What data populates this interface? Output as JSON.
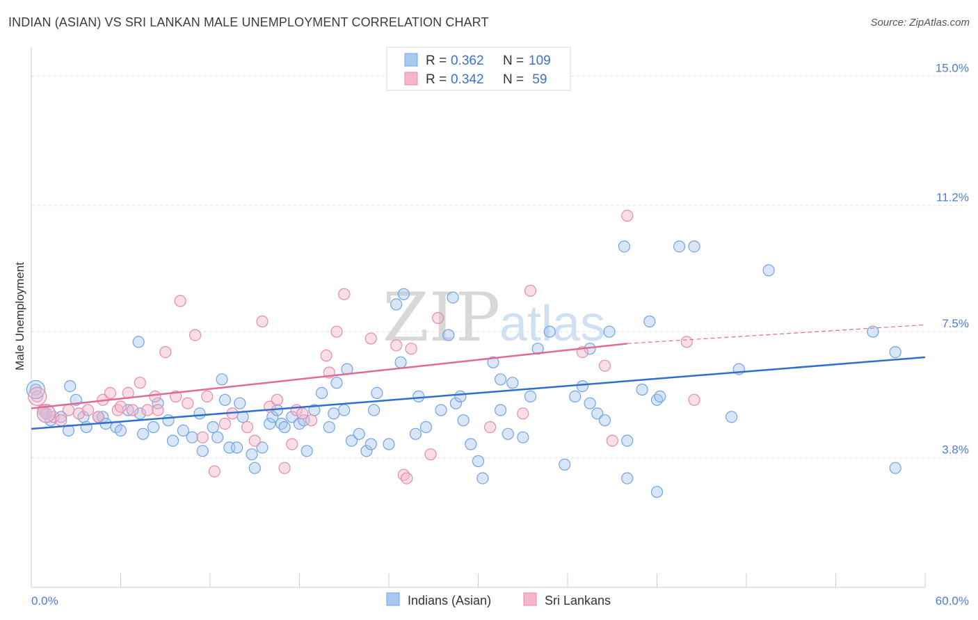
{
  "title": "INDIAN (ASIAN) VS SRI LANKAN MALE UNEMPLOYMENT CORRELATION CHART",
  "source": "Source: ZipAtlas.com",
  "watermark": {
    "zip": "ZIP",
    "atlas": "atlas"
  },
  "legend": {
    "rows": [
      {
        "r_label": "R = ",
        "r_value": "0.362",
        "n_label": "N = ",
        "n_value": "109",
        "color": "#a9c8f0"
      },
      {
        "r_label": "R = ",
        "r_value": "0.342",
        "n_label": "N = ",
        "n_value": " 59",
        "color": "#f4b6c8"
      }
    ]
  },
  "bottom_legend": [
    "Indians (Asian)",
    "Sri Lankans"
  ],
  "chart_data": {
    "type": "scatter",
    "title": "INDIAN (ASIAN) VS SRI LANKAN MALE UNEMPLOYMENT CORRELATION CHART",
    "xlabel": "",
    "ylabel": "Male Unemployment",
    "xlim": [
      0,
      60
    ],
    "ylim": [
      0.0,
      15.7
    ],
    "x_ticks_labels": [
      "0.0%",
      "60.0%"
    ],
    "y_ticks": [
      3.8,
      7.5,
      11.2,
      15.0
    ],
    "y_ticks_labels": [
      "3.8%",
      "7.5%",
      "11.2%",
      "15.0%"
    ],
    "grid": "horizontal dashed",
    "series": [
      {
        "name": "Indians (Asian)",
        "color": "#6fa3e6",
        "fill": "#a9c8f0",
        "trend": {
          "x0": 0,
          "y0": 4.65,
          "x1": 60,
          "y1": 6.75,
          "color": "#2f6fd0"
        },
        "points": [
          [
            0.3,
            5.8
          ],
          [
            0.8,
            5.2
          ],
          [
            1.0,
            5.1
          ],
          [
            1.3,
            4.9
          ],
          [
            2.0,
            5.0
          ],
          [
            2.5,
            4.6
          ],
          [
            2.6,
            5.9
          ],
          [
            3.0,
            5.5
          ],
          [
            3.5,
            5.0
          ],
          [
            3.7,
            4.7
          ],
          [
            4.5,
            5.0
          ],
          [
            4.8,
            5.0
          ],
          [
            5.0,
            4.8
          ],
          [
            5.7,
            4.7
          ],
          [
            6.0,
            4.6
          ],
          [
            6.5,
            5.2
          ],
          [
            7.5,
            4.5
          ],
          [
            7.3,
            5.1
          ],
          [
            8.2,
            4.7
          ],
          [
            8.5,
            5.4
          ],
          [
            7.2,
            7.2
          ],
          [
            9.2,
            4.9
          ],
          [
            9.5,
            4.3
          ],
          [
            10.2,
            4.6
          ],
          [
            10.8,
            4.4
          ],
          [
            11.3,
            5.1
          ],
          [
            11.5,
            4.0
          ],
          [
            12.2,
            4.7
          ],
          [
            12.5,
            4.4
          ],
          [
            12.8,
            6.1
          ],
          [
            13.0,
            5.5
          ],
          [
            13.3,
            4.1
          ],
          [
            13.8,
            4.1
          ],
          [
            14.0,
            5.4
          ],
          [
            14.2,
            5.0
          ],
          [
            14.8,
            3.9
          ],
          [
            15.0,
            3.5
          ],
          [
            15.5,
            4.1
          ],
          [
            16.0,
            4.8
          ],
          [
            16.2,
            5.0
          ],
          [
            16.5,
            5.2
          ],
          [
            16.8,
            4.8
          ],
          [
            17.0,
            4.7
          ],
          [
            17.5,
            5.0
          ],
          [
            18.0,
            4.8
          ],
          [
            18.3,
            4.9
          ],
          [
            18.5,
            4.0
          ],
          [
            19.0,
            5.2
          ],
          [
            19.5,
            5.7
          ],
          [
            20.0,
            4.7
          ],
          [
            20.3,
            5.1
          ],
          [
            20.5,
            6.0
          ],
          [
            21.0,
            5.2
          ],
          [
            21.2,
            6.4
          ],
          [
            21.5,
            4.3
          ],
          [
            22.0,
            4.5
          ],
          [
            22.5,
            4.0
          ],
          [
            22.8,
            4.2
          ],
          [
            23.0,
            5.2
          ],
          [
            23.2,
            5.7
          ],
          [
            24.0,
            4.2
          ],
          [
            24.5,
            8.3
          ],
          [
            24.8,
            6.6
          ],
          [
            25.0,
            8.6
          ],
          [
            25.8,
            4.5
          ],
          [
            26.0,
            5.6
          ],
          [
            26.5,
            4.7
          ],
          [
            27.5,
            5.2
          ],
          [
            28.0,
            7.4
          ],
          [
            28.3,
            8.5
          ],
          [
            28.5,
            5.4
          ],
          [
            28.8,
            5.6
          ],
          [
            29.0,
            4.9
          ],
          [
            29.5,
            4.2
          ],
          [
            30.0,
            3.7
          ],
          [
            30.3,
            3.2
          ],
          [
            31.0,
            6.6
          ],
          [
            31.5,
            5.2
          ],
          [
            32.0,
            4.5
          ],
          [
            31.5,
            6.1
          ],
          [
            32.3,
            6.0
          ],
          [
            33.5,
            5.6
          ],
          [
            34.0,
            7.0
          ],
          [
            34.8,
            7.5
          ],
          [
            35.8,
            3.6
          ],
          [
            36.5,
            5.6
          ],
          [
            37.0,
            5.9
          ],
          [
            37.5,
            7.0
          ],
          [
            37.5,
            5.4
          ],
          [
            38.0,
            5.1
          ],
          [
            38.5,
            4.9
          ],
          [
            38.8,
            7.5
          ],
          [
            40.0,
            4.3
          ],
          [
            39.8,
            10.0
          ],
          [
            40.0,
            3.2
          ],
          [
            41.0,
            5.8
          ],
          [
            41.5,
            7.8
          ],
          [
            42.0,
            5.5
          ],
          [
            42.2,
            5.6
          ],
          [
            43.5,
            10.0
          ],
          [
            44.5,
            10.0
          ],
          [
            47.0,
            5.0
          ],
          [
            47.5,
            6.4
          ],
          [
            49.5,
            9.3
          ],
          [
            56.5,
            7.5
          ],
          [
            58.0,
            3.5
          ],
          [
            58.0,
            6.9
          ],
          [
            33.0,
            4.4
          ],
          [
            42.0,
            2.8
          ]
        ]
      },
      {
        "name": "Sri Lankans",
        "color": "#e88aa8",
        "fill": "#f4b6c8",
        "trend": {
          "x0": 0,
          "y0": 5.25,
          "x1": 40,
          "y1": 7.15,
          "x2": 60,
          "y2": 7.7,
          "color": "#e06a92"
        },
        "points": [
          [
            0.4,
            5.6
          ],
          [
            0.8,
            5.2
          ],
          [
            1.0,
            5.1
          ],
          [
            1.5,
            5.0
          ],
          [
            2.0,
            4.9
          ],
          [
            2.5,
            5.2
          ],
          [
            3.2,
            5.1
          ],
          [
            3.8,
            5.2
          ],
          [
            4.5,
            5.0
          ],
          [
            4.8,
            5.5
          ],
          [
            5.3,
            5.7
          ],
          [
            5.8,
            5.2
          ],
          [
            6.0,
            5.3
          ],
          [
            6.5,
            5.7
          ],
          [
            6.8,
            5.2
          ],
          [
            7.3,
            6.0
          ],
          [
            7.8,
            5.2
          ],
          [
            8.3,
            5.6
          ],
          [
            8.5,
            5.2
          ],
          [
            9.0,
            6.9
          ],
          [
            9.7,
            5.6
          ],
          [
            10.0,
            8.4
          ],
          [
            10.5,
            5.4
          ],
          [
            11.0,
            7.4
          ],
          [
            11.5,
            4.4
          ],
          [
            11.8,
            5.6
          ],
          [
            12.3,
            3.4
          ],
          [
            13.0,
            4.8
          ],
          [
            13.5,
            5.1
          ],
          [
            14.5,
            4.7
          ],
          [
            15.0,
            4.3
          ],
          [
            15.5,
            7.8
          ],
          [
            16.0,
            5.3
          ],
          [
            16.5,
            5.5
          ],
          [
            17.0,
            3.5
          ],
          [
            17.5,
            4.2
          ],
          [
            17.8,
            5.2
          ],
          [
            18.2,
            5.1
          ],
          [
            18.8,
            4.9
          ],
          [
            19.8,
            6.8
          ],
          [
            20.0,
            6.3
          ],
          [
            20.5,
            7.5
          ],
          [
            21.0,
            8.6
          ],
          [
            22.8,
            7.3
          ],
          [
            24.5,
            7.1
          ],
          [
            25.0,
            3.3
          ],
          [
            25.2,
            3.2
          ],
          [
            25.5,
            7.0
          ],
          [
            26.8,
            3.9
          ],
          [
            27.3,
            7.9
          ],
          [
            30.8,
            4.7
          ],
          [
            33.0,
            5.1
          ],
          [
            33.5,
            8.7
          ],
          [
            37.0,
            6.9
          ],
          [
            38.5,
            6.5
          ],
          [
            39.0,
            4.3
          ],
          [
            40.0,
            10.9
          ],
          [
            44.0,
            7.2
          ],
          [
            44.5,
            5.5
          ]
        ]
      }
    ]
  }
}
